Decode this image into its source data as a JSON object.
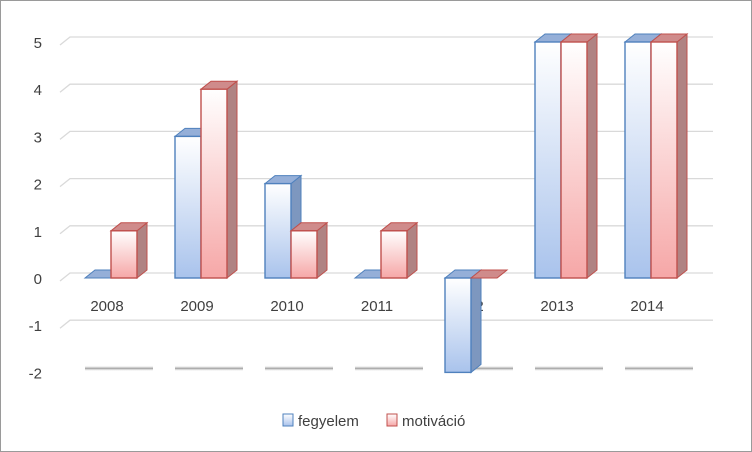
{
  "chart_data": {
    "type": "bar",
    "style": "3d-clustered-column",
    "categories": [
      "2008",
      "2009",
      "2010",
      "2011",
      "2012",
      "2013",
      "2014"
    ],
    "series": [
      {
        "name": "fegyelem",
        "values": [
          0,
          3,
          2,
          0,
          -2,
          5,
          5
        ],
        "color": "#4f81bd"
      },
      {
        "name": "motiváció",
        "values": [
          1,
          4,
          1,
          1,
          0,
          5,
          5
        ],
        "color": "#c0504d"
      }
    ],
    "yticks": [
      "5",
      "4",
      "3",
      "2",
      "1",
      "0",
      "-1",
      "-2"
    ],
    "ylim": [
      -2,
      5
    ],
    "grid": true,
    "legend_position": "bottom",
    "title": "",
    "xlabel": "",
    "ylabel": ""
  }
}
